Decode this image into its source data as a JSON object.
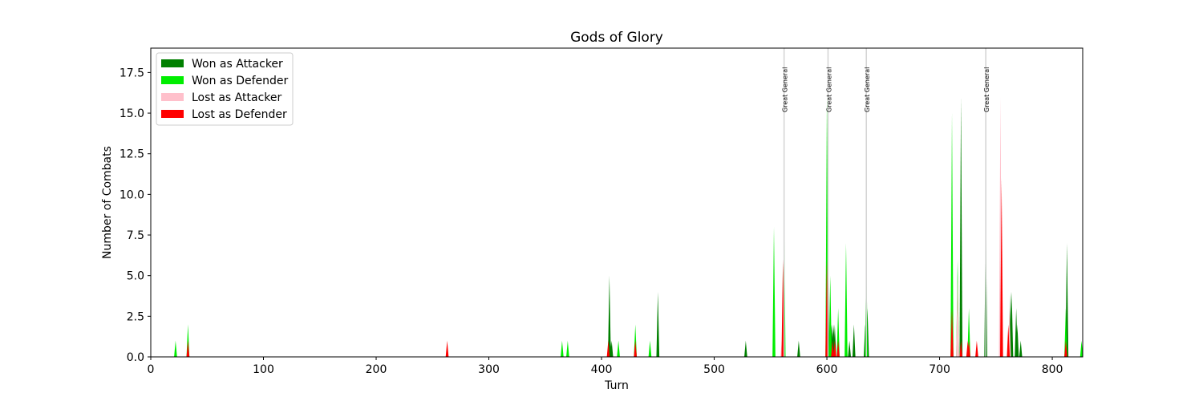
{
  "chart_data": {
    "type": "area",
    "title": "Gods of Glory",
    "xlabel": "Turn",
    "ylabel": "Number of Combats",
    "xlim": [
      0,
      827
    ],
    "ylim": [
      0,
      19
    ],
    "x_ticks": [
      0,
      100,
      200,
      300,
      400,
      500,
      600,
      700,
      800
    ],
    "y_ticks": [
      0.0,
      2.5,
      5.0,
      7.5,
      10.0,
      12.5,
      15.0,
      17.5
    ],
    "y_tick_labels": [
      "0.0",
      "2.5",
      "5.0",
      "7.5",
      "10.0",
      "12.5",
      "15.0",
      "17.5"
    ],
    "grid": false,
    "legend_position": "top-left",
    "series": [
      {
        "name": "Won as Attacker",
        "color": "#008000",
        "points": [
          [
            407,
            5
          ],
          [
            408,
            1
          ],
          [
            409,
            1
          ],
          [
            450,
            4
          ],
          [
            528,
            1
          ],
          [
            575,
            1
          ],
          [
            601,
            7
          ],
          [
            604,
            2
          ],
          [
            605,
            2
          ],
          [
            606,
            2
          ],
          [
            607,
            2
          ],
          [
            620,
            1
          ],
          [
            624,
            2
          ],
          [
            634,
            2
          ],
          [
            635,
            4
          ],
          [
            636,
            3
          ],
          [
            719,
            16
          ],
          [
            741,
            9
          ],
          [
            763,
            4
          ],
          [
            764,
            4
          ],
          [
            768,
            3
          ],
          [
            769,
            2
          ],
          [
            772,
            1
          ],
          [
            813,
            7
          ]
        ]
      },
      {
        "name": "Won as Defender",
        "color": "#00ee00",
        "points": [
          [
            22,
            1
          ],
          [
            33,
            2
          ],
          [
            365,
            1
          ],
          [
            370,
            1
          ],
          [
            415,
            1
          ],
          [
            430,
            2
          ],
          [
            443,
            1
          ],
          [
            553,
            8
          ],
          [
            562,
            9
          ],
          [
            600,
            16
          ],
          [
            603,
            5
          ],
          [
            610,
            3
          ],
          [
            617,
            7
          ],
          [
            635,
            6
          ],
          [
            711,
            15
          ],
          [
            716,
            6
          ],
          [
            726,
            3
          ],
          [
            812,
            3
          ],
          [
            826,
            1
          ]
        ]
      },
      {
        "name": "Lost as Attacker",
        "color": "#ffc0cb",
        "points": [
          [
            560,
            1
          ],
          [
            716,
            5
          ],
          [
            754,
            16
          ],
          [
            762,
            3
          ]
        ]
      },
      {
        "name": "Lost as Defender",
        "color": "#ff0000",
        "points": [
          [
            33,
            1
          ],
          [
            263,
            1
          ],
          [
            406,
            1
          ],
          [
            430,
            1
          ],
          [
            561,
            6
          ],
          [
            600,
            6
          ],
          [
            605,
            1
          ],
          [
            607,
            1
          ],
          [
            610,
            1
          ],
          [
            711,
            3
          ],
          [
            719,
            1
          ],
          [
            725,
            1
          ],
          [
            726,
            1
          ],
          [
            733,
            1
          ],
          [
            755,
            11
          ],
          [
            761,
            2
          ],
          [
            812,
            1
          ]
        ]
      }
    ],
    "annotations": [
      {
        "x": 562,
        "text": "Great General"
      },
      {
        "x": 601,
        "text": "Great General"
      },
      {
        "x": 635,
        "text": "Great General"
      },
      {
        "x": 741,
        "text": "Great General"
      }
    ],
    "annotation_line_color": "#d3d3d3"
  }
}
